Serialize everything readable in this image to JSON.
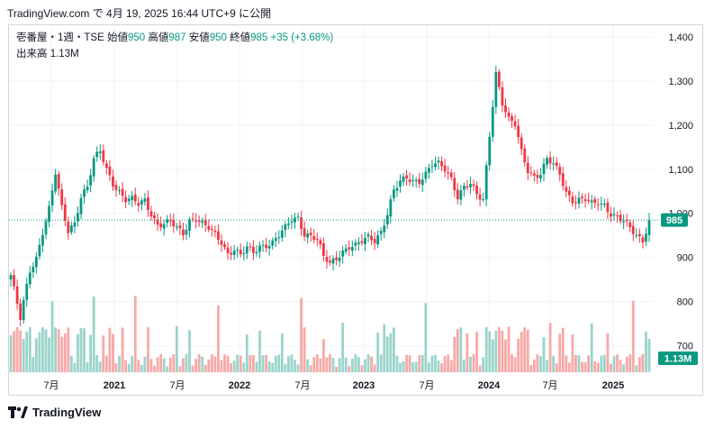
{
  "header": {
    "attribution": "TradingView.com で 4月 19, 2025 16:44 UTC+9 に公開"
  },
  "legend": {
    "symbol": "壱番屋・1週・TSE",
    "open_label": "始値",
    "open_value": "950",
    "high_label": "高値",
    "high_value": "987",
    "low_label": "安値",
    "low_value": "950",
    "close_label": "終値",
    "close_value": "985",
    "change": "+35 (+3.68%)",
    "volume_label": "出来高",
    "volume_value": "1.13M"
  },
  "price_tag": "985",
  "volume_tag": "1.13M",
  "footer": {
    "brand": "TradingView"
  },
  "colors": {
    "up": "#089981",
    "down": "#f23645",
    "up_volume": "#9ad4cb",
    "down_volume": "#f7a9a7",
    "grid": "#f0f3fa",
    "last_line": "#089981"
  },
  "chart_data": {
    "type": "candlestick",
    "interval": "weekly",
    "y_axis_ticks": [
      "1,400",
      "1,300",
      "1,200",
      "1,100",
      "1,000",
      "900",
      "800",
      "700"
    ],
    "y_axis_values": [
      1400,
      1300,
      1200,
      1100,
      1000,
      900,
      800,
      700
    ],
    "x_axis_ticks": [
      "7月",
      "2021",
      "7月",
      "2022",
      "7月",
      "2023",
      "7月",
      "2024",
      "7月",
      "2025"
    ],
    "ylim": [
      660,
      1420
    ],
    "last_close": 985,
    "last_volume_m": 1.13,
    "close_path": [
      [
        0,
        860
      ],
      [
        3,
        760
      ],
      [
        6,
        870
      ],
      [
        8,
        900
      ],
      [
        10,
        960
      ],
      [
        12,
        1010
      ],
      [
        14,
        1090
      ],
      [
        16,
        1010
      ],
      [
        18,
        960
      ],
      [
        20,
        980
      ],
      [
        22,
        1040
      ],
      [
        24,
        1060
      ],
      [
        26,
        1120
      ],
      [
        28,
        1140
      ],
      [
        30,
        1100
      ],
      [
        32,
        1070
      ],
      [
        34,
        1050
      ],
      [
        36,
        1030
      ],
      [
        38,
        1030
      ],
      [
        40,
        1020
      ],
      [
        42,
        1030
      ],
      [
        44,
        1000
      ],
      [
        46,
        975
      ],
      [
        48,
        975
      ],
      [
        50,
        980
      ],
      [
        52,
        965
      ],
      [
        54,
        955
      ],
      [
        56,
        985
      ],
      [
        58,
        990
      ],
      [
        60,
        975
      ],
      [
        62,
        965
      ],
      [
        64,
        950
      ],
      [
        66,
        935
      ],
      [
        68,
        910
      ],
      [
        70,
        920
      ],
      [
        72,
        905
      ],
      [
        74,
        920
      ],
      [
        76,
        910
      ],
      [
        78,
        925
      ],
      [
        80,
        930
      ],
      [
        82,
        935
      ],
      [
        84,
        950
      ],
      [
        86,
        965
      ],
      [
        88,
        985
      ],
      [
        90,
        990
      ],
      [
        92,
        955
      ],
      [
        94,
        950
      ],
      [
        96,
        940
      ],
      [
        98,
        900
      ],
      [
        100,
        885
      ],
      [
        102,
        900
      ],
      [
        104,
        915
      ],
      [
        106,
        925
      ],
      [
        108,
        925
      ],
      [
        110,
        935
      ],
      [
        112,
        945
      ],
      [
        114,
        940
      ],
      [
        116,
        960
      ],
      [
        118,
        1000
      ],
      [
        120,
        1050
      ],
      [
        122,
        1070
      ],
      [
        124,
        1080
      ],
      [
        126,
        1075
      ],
      [
        128,
        1075
      ],
      [
        130,
        1090
      ],
      [
        132,
        1110
      ],
      [
        134,
        1110
      ],
      [
        136,
        1100
      ],
      [
        138,
        1080
      ],
      [
        140,
        1040
      ],
      [
        142,
        1060
      ],
      [
        144,
        1065
      ],
      [
        146,
        1040
      ],
      [
        148,
        1030
      ],
      [
        150,
        1180
      ],
      [
        152,
        1320
      ],
      [
        154,
        1250
      ],
      [
        156,
        1210
      ],
      [
        158,
        1200
      ],
      [
        160,
        1140
      ],
      [
        162,
        1100
      ],
      [
        164,
        1085
      ],
      [
        166,
        1090
      ],
      [
        168,
        1120
      ],
      [
        170,
        1110
      ],
      [
        172,
        1090
      ],
      [
        174,
        1050
      ],
      [
        176,
        1030
      ],
      [
        178,
        1030
      ],
      [
        180,
        1030
      ],
      [
        182,
        1020
      ],
      [
        184,
        1025
      ],
      [
        186,
        1020
      ],
      [
        188,
        1000
      ],
      [
        190,
        990
      ],
      [
        192,
        980
      ],
      [
        194,
        965
      ],
      [
        196,
        950
      ],
      [
        198,
        940
      ],
      [
        200,
        985
      ]
    ]
  }
}
